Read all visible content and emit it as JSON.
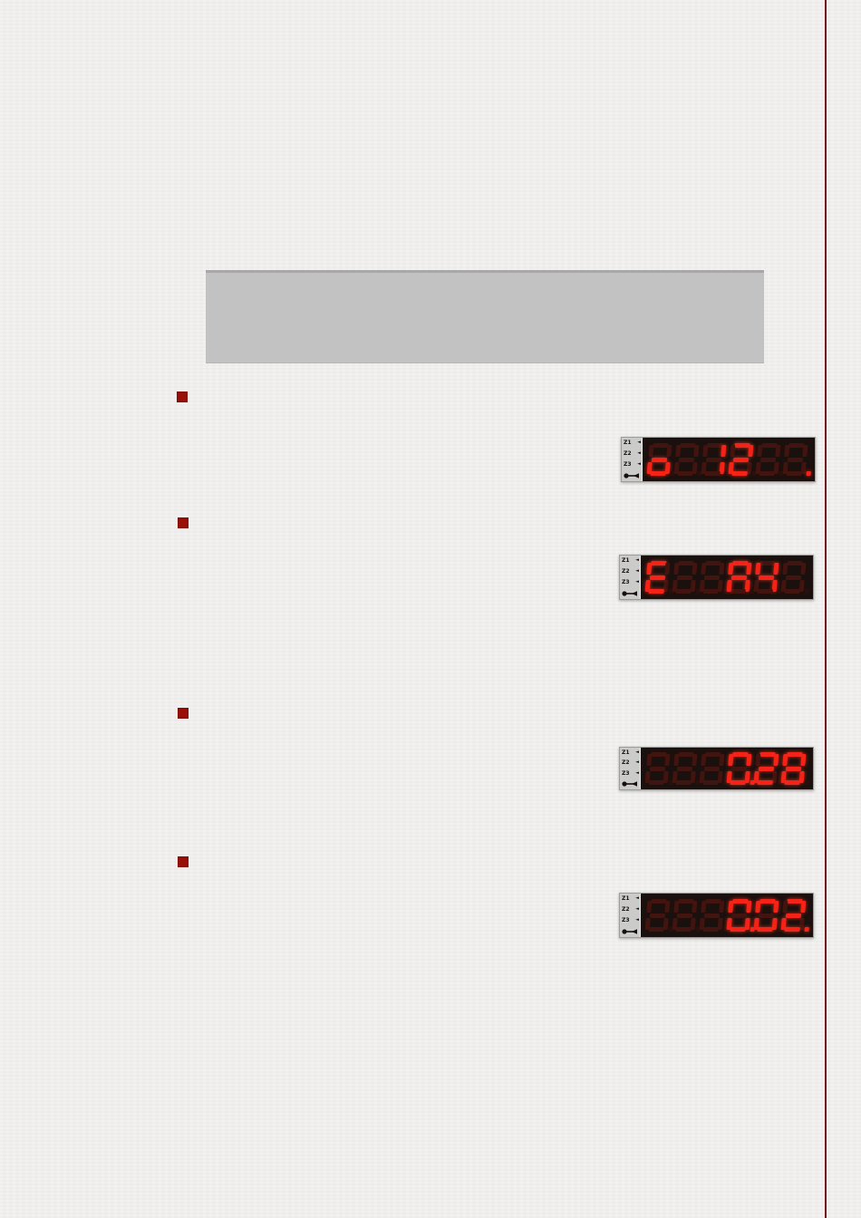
{
  "page": {
    "bg_color": "#f2f1ef",
    "margin_rule_color": "#6e1522"
  },
  "content_banner": {
    "text": "",
    "bg_color": "#c2c2c2"
  },
  "bullets": {
    "count": 4,
    "color": "#9a0f08"
  },
  "led": {
    "bright_color": "#f32318",
    "dim_color": "#421410",
    "panel_color": "#1a100d",
    "strip_color": "#cbcbc9",
    "zone_labels": [
      "Z1",
      "Z2",
      "Z3"
    ],
    "icons": {
      "zone_arrow": "◄",
      "key": "key-icon"
    },
    "displays": [
      {
        "reading": "o  12  .",
        "digits": [
          {
            "char": "o",
            "lit": true
          },
          {
            "char": "8",
            "lit": false
          },
          {
            "char": "1",
            "lit": true
          },
          {
            "char": "2",
            "lit": true
          },
          {
            "char": "8",
            "lit": false
          },
          {
            "char": "8",
            "lit": false,
            "dot_lit": true
          }
        ]
      },
      {
        "reading": "E  A4",
        "digits": [
          {
            "char": "E",
            "lit": true
          },
          {
            "char": "8",
            "lit": false
          },
          {
            "char": "8",
            "lit": false
          },
          {
            "char": "A",
            "lit": true
          },
          {
            "char": "4",
            "lit": true
          },
          {
            "char": "8",
            "lit": false
          }
        ]
      },
      {
        "reading": "0.28",
        "digits": [
          {
            "char": "8",
            "lit": false
          },
          {
            "char": "8",
            "lit": false
          },
          {
            "char": "8",
            "lit": false
          },
          {
            "char": "0",
            "lit": true,
            "dot_lit": true
          },
          {
            "char": "2",
            "lit": true
          },
          {
            "char": "8",
            "lit": true
          }
        ]
      },
      {
        "reading": "0.02.",
        "digits": [
          {
            "char": "8",
            "lit": false
          },
          {
            "char": "8",
            "lit": false
          },
          {
            "char": "8",
            "lit": false
          },
          {
            "char": "0",
            "lit": true,
            "dot_lit": true
          },
          {
            "char": "0",
            "lit": true
          },
          {
            "char": "2",
            "lit": true,
            "dot_lit": true
          }
        ]
      }
    ]
  }
}
